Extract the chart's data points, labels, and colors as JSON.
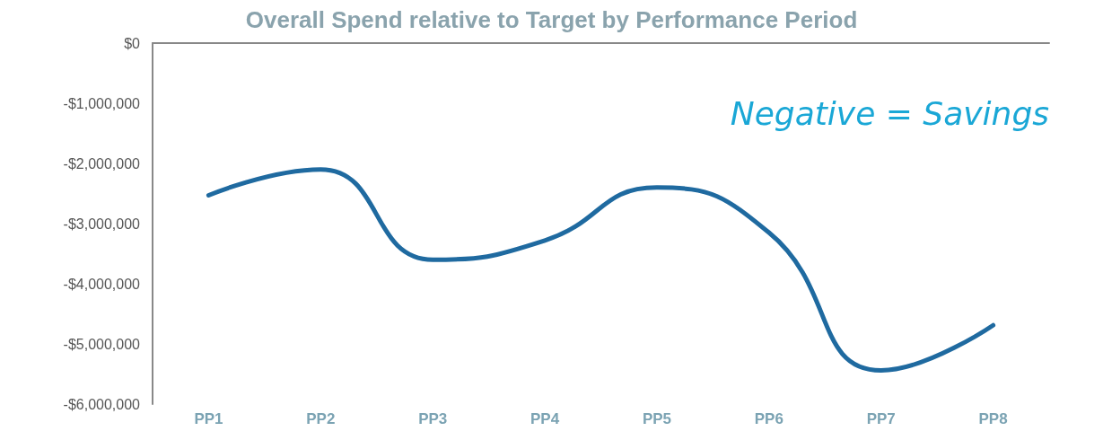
{
  "chart_data": {
    "type": "line",
    "title": "Overall Spend relative to Target by Performance Period",
    "categories": [
      "PP1",
      "PP2",
      "PP3",
      "PP4",
      "PP5",
      "PP6",
      "PP7",
      "PP8"
    ],
    "series": [
      {
        "color": "#1f6aa0",
        "values": [
          -2530000,
          -2100000,
          -3600000,
          -3280000,
          -2400000,
          -3150000,
          -5440000,
          -4690000
        ]
      }
    ],
    "ylim": [
      -6000000,
      0
    ],
    "yticks": [
      {
        "value": -6000000,
        "label": "-$6,000,000"
      },
      {
        "value": -5000000,
        "label": "-$5,000,000"
      },
      {
        "value": -4000000,
        "label": "-$4,000,000"
      },
      {
        "value": -3000000,
        "label": "-$3,000,000"
      },
      {
        "value": -2000000,
        "label": "-$2,000,000"
      },
      {
        "value": -1000000,
        "label": "-$1,000,000"
      },
      {
        "value": 0,
        "label": "$0"
      }
    ],
    "annotations": [
      "Negative = Savings"
    ],
    "marker": "none",
    "line_style": "solid"
  }
}
